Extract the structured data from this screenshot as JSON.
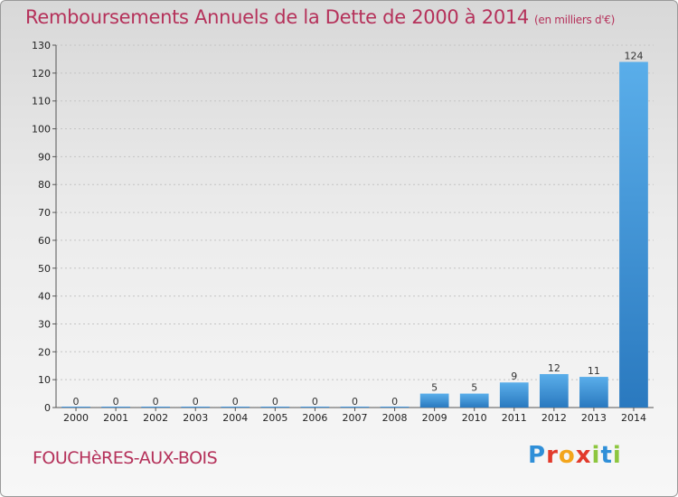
{
  "title": "Remboursements Annuels de la Dette de 2000 à 2014",
  "unit": "(en milliers d'€)",
  "commune": "FOUCHèRES-AUX-BOIS",
  "logo": {
    "letters": [
      "P",
      "r",
      "o",
      "x",
      "i",
      "t",
      "i"
    ],
    "colors": [
      "#2f8fd8",
      "#e23a2b",
      "#f3a51c",
      "#e23a2b",
      "#8dc63f",
      "#2f8fd8",
      "#8dc63f"
    ]
  },
  "chart_data": {
    "type": "bar",
    "categories": [
      "2000",
      "2001",
      "2002",
      "2003",
      "2004",
      "2005",
      "2006",
      "2007",
      "2008",
      "2009",
      "2010",
      "2011",
      "2012",
      "2013",
      "2014"
    ],
    "values": [
      0,
      0,
      0,
      0,
      0,
      0,
      0,
      0,
      0,
      5,
      5,
      9,
      12,
      11,
      124
    ],
    "ylim": [
      0,
      130
    ],
    "yticks": [
      0,
      10,
      20,
      30,
      40,
      50,
      60,
      70,
      80,
      90,
      100,
      110,
      120,
      130
    ],
    "grid": true,
    "bar_color": "#3d8fd6"
  }
}
